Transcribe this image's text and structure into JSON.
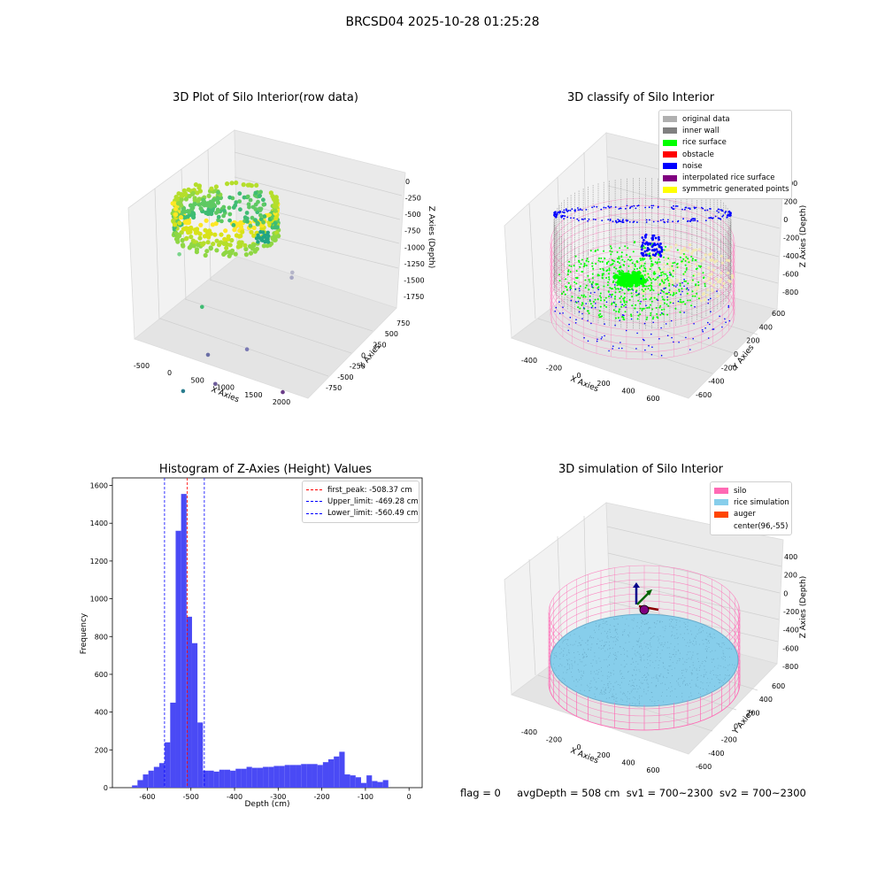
{
  "figure": {
    "suptitle": "BRCSD04 2025-10-28 01:25:28",
    "footer": {
      "flag": "flag = 0",
      "avg_depth": "avgDepth = 508 cm",
      "sv1": "sv1 = 700~2300",
      "sv2": "sv2 = 700~2300"
    }
  },
  "colors": {
    "histogram_bar": "#4a4af5",
    "first_peak_line": "#ff0000",
    "limit_lines": "#0000ff",
    "silo_wire": "#ff69b4",
    "rice_simulation": "#87ceeb",
    "rice_surface": "#00ff00",
    "noise": "#0000ff",
    "inner_wall": "#808080",
    "original_data": "#b0b0b0",
    "obstacle": "#ff0000",
    "interpolated": "#800080",
    "symmetric": "#ffff00",
    "auger": "#ff4500"
  },
  "chart_data": [
    {
      "type": "scatter",
      "subtype": "3d",
      "title": "3D Plot of Silo Interior(row data)",
      "xlabel": "X Axies",
      "ylabel": "Y Axies",
      "zlabel": "Z Axies (Depth)",
      "x_ticks": [
        "-500",
        "0",
        "500",
        "1000",
        "1500",
        "2000"
      ],
      "y_ticks": [
        "750",
        "500",
        "250",
        "0",
        "-250",
        "-500",
        "-750"
      ],
      "z_ticks": [
        "0",
        "-250",
        "-500",
        "-750",
        "-1000",
        "-1250",
        "-1500",
        "-1750"
      ],
      "colormap": "viridis",
      "outlier_points": [
        {
          "x": 520,
          "y": -220,
          "z": -680
        },
        {
          "x": 1710,
          "y": 220,
          "z": -820
        },
        {
          "x": 1700,
          "y": 240,
          "z": -780
        },
        {
          "x": 760,
          "y": -130,
          "z": -1180
        },
        {
          "x": 1120,
          "y": -420,
          "z": -1450
        },
        {
          "x": 1450,
          "y": -180,
          "z": -1420
        },
        {
          "x": 1050,
          "y": -720,
          "z": -1700
        },
        {
          "x": 1320,
          "y": -520,
          "z": -1650
        },
        {
          "x": 2000,
          "y": -220,
          "z": -1700
        }
      ]
    },
    {
      "type": "scatter",
      "subtype": "3d",
      "title": "3D classify of Silo Interior",
      "xlabel": "X Axies",
      "ylabel": "Y Axies",
      "zlabel": "Z Axies (Depth)",
      "x_ticks": [
        "-400",
        "-200",
        "0",
        "200",
        "400",
        "600"
      ],
      "y_ticks": [
        "600",
        "400",
        "200",
        "0",
        "-200",
        "-400",
        "-600"
      ],
      "z_ticks": [
        "400",
        "200",
        "0",
        "-200",
        "-400",
        "-600",
        "-800"
      ],
      "z_ticks_partially_hidden": [
        "400"
      ],
      "legend": [
        {
          "label": "original data",
          "color": "#b0b0b0"
        },
        {
          "label": "inner wall",
          "color": "#808080"
        },
        {
          "label": "rice surface",
          "color": "#00ff00"
        },
        {
          "label": "obstacle",
          "color": "#ff0000"
        },
        {
          "label": "noise",
          "color": "#0000ff"
        },
        {
          "label": "interpolated rice surface",
          "color": "#800080"
        },
        {
          "label": "symmetric generated points",
          "color": "#ffff00"
        }
      ]
    },
    {
      "type": "bar",
      "subtype": "histogram",
      "title": "Histogram of Z-Axies (Height) Values",
      "xlabel": "Depth (cm)",
      "ylabel": "Frequency",
      "xlim": [
        -680,
        30
      ],
      "ylim": [
        0,
        1640
      ],
      "x_ticks": [
        -600,
        -500,
        -400,
        -300,
        -200,
        -100,
        0
      ],
      "y_ticks": [
        0,
        200,
        400,
        600,
        800,
        1000,
        1200,
        1400,
        1600
      ],
      "bin_start": -635,
      "bin_width": 12.5,
      "values": [
        12,
        40,
        70,
        90,
        110,
        130,
        240,
        450,
        1360,
        1555,
        905,
        765,
        345,
        90,
        90,
        85,
        95,
        95,
        90,
        100,
        100,
        110,
        105,
        105,
        110,
        110,
        115,
        115,
        120,
        120,
        120,
        125,
        125,
        125,
        120,
        135,
        150,
        165,
        190,
        70,
        65,
        55,
        25,
        65,
        35,
        30,
        40
      ],
      "vlines": [
        {
          "label": "first_peak: -508.37 cm",
          "x": -508.37,
          "color": "#ff0000"
        },
        {
          "label": "Upper_limit: -469.28 cm",
          "x": -469.28,
          "color": "#0000ff"
        },
        {
          "label": "Lower_limit: -560.49 cm",
          "x": -560.49,
          "color": "#0000ff"
        }
      ]
    },
    {
      "type": "scatter",
      "subtype": "3d",
      "title": "3D simulation of Silo Interior",
      "xlabel": "X Axies",
      "ylabel": "Y Axies",
      "zlabel": "Z Axies (Depth)",
      "x_ticks": [
        "-400",
        "-200",
        "0",
        "200",
        "400",
        "600"
      ],
      "y_ticks": [
        "600",
        "400",
        "200",
        "0",
        "-200",
        "-400",
        "-600"
      ],
      "z_ticks": [
        "400",
        "200",
        "0",
        "-200",
        "-400",
        "-600",
        "-800"
      ],
      "legend": [
        {
          "label": "silo",
          "color": "#ff69b4"
        },
        {
          "label": "rice simulation",
          "color": "#87ceeb"
        },
        {
          "label": "auger",
          "color": "#ff4500"
        },
        {
          "label": "center(96,-55)",
          "color": ""
        }
      ]
    }
  ]
}
